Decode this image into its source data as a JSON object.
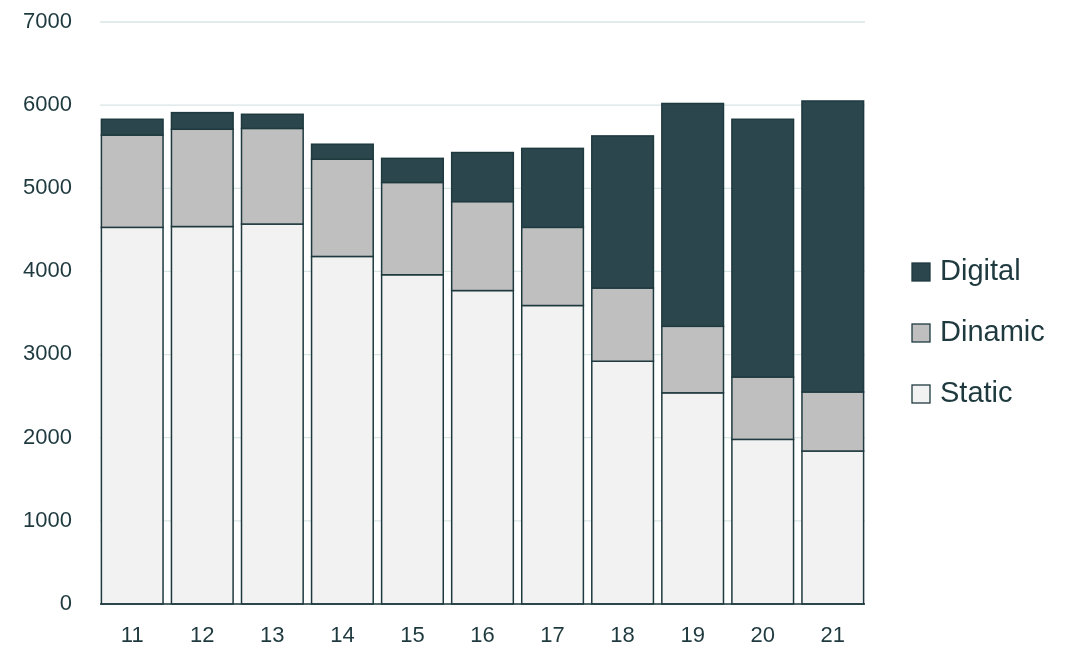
{
  "chart_data": {
    "type": "bar",
    "stacked": true,
    "categories": [
      "11",
      "12",
      "13",
      "14",
      "15",
      "16",
      "17",
      "18",
      "19",
      "20",
      "21"
    ],
    "series": [
      {
        "name": "Static",
        "color": "#f2f2f2",
        "values": [
          4530,
          4540,
          4570,
          4180,
          3960,
          3770,
          3590,
          2920,
          2540,
          1980,
          1840
        ]
      },
      {
        "name": "Dinamic",
        "color": "#bfbfbf",
        "values": [
          1110,
          1170,
          1150,
          1170,
          1110,
          1070,
          940,
          880,
          800,
          750,
          710
        ]
      },
      {
        "name": "Digital",
        "color": "#2b474d",
        "values": [
          190,
          200,
          170,
          180,
          290,
          590,
          950,
          1830,
          2680,
          3100,
          3500
        ]
      }
    ],
    "ylim": [
      0,
      7000
    ],
    "yticks": [
      0,
      1000,
      2000,
      3000,
      4000,
      5000,
      6000,
      7000
    ],
    "grid": "y",
    "legend": "right"
  }
}
